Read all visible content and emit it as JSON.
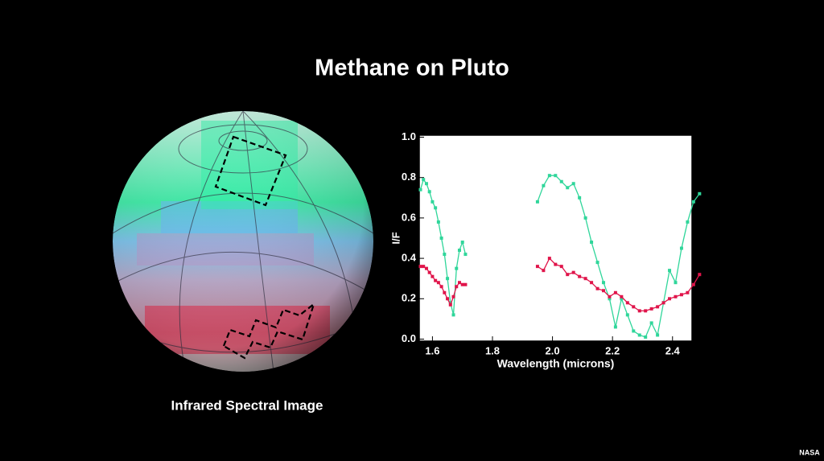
{
  "slide": {
    "title": "Methane on Pluto",
    "caption": "Infrared Spectral Image",
    "credit": "NASA"
  },
  "chart_data": {
    "type": "line",
    "x_label": "Wavelength (microns)",
    "y_label": "I/F",
    "x": [
      1.56,
      1.57,
      1.58,
      1.59,
      1.6,
      1.61,
      1.62,
      1.63,
      1.64,
      1.65,
      1.66,
      1.67,
      1.68,
      1.69,
      1.7,
      1.71,
      1.8,
      1.95,
      1.97,
      1.99,
      2.01,
      2.03,
      2.05,
      2.07,
      2.09,
      2.11,
      2.13,
      2.15,
      2.17,
      2.19,
      2.21,
      2.23,
      2.25,
      2.27,
      2.29,
      2.31,
      2.33,
      2.35,
      2.37,
      2.39,
      2.41,
      2.43,
      2.45,
      2.47,
      2.49
    ],
    "series": [
      {
        "color": "#2fd69a",
        "values": [
          0.74,
          0.79,
          0.77,
          0.73,
          0.68,
          0.65,
          0.58,
          0.5,
          0.42,
          0.3,
          0.18,
          0.12,
          0.35,
          0.44,
          0.48,
          0.42,
          null,
          0.68,
          0.76,
          0.81,
          0.81,
          0.78,
          0.75,
          0.77,
          0.7,
          0.6,
          0.48,
          0.38,
          0.28,
          0.2,
          0.06,
          0.2,
          0.12,
          0.04,
          0.02,
          0.01,
          0.08,
          0.02,
          0.18,
          0.34,
          0.28,
          0.45,
          0.58,
          0.68,
          0.72
        ]
      },
      {
        "color": "#e0144a",
        "values": [
          0.36,
          0.36,
          0.35,
          0.33,
          0.31,
          0.29,
          0.28,
          0.26,
          0.23,
          0.2,
          0.17,
          0.21,
          0.26,
          0.28,
          0.27,
          0.27,
          null,
          0.36,
          0.34,
          0.4,
          0.37,
          0.36,
          0.32,
          0.33,
          0.31,
          0.3,
          0.28,
          0.25,
          0.24,
          0.21,
          0.23,
          0.21,
          0.18,
          0.16,
          0.14,
          0.14,
          0.15,
          0.16,
          0.18,
          0.2,
          0.21,
          0.22,
          0.23,
          0.27,
          0.32
        ]
      }
    ],
    "xlim": [
      1.556,
      2.465
    ],
    "ylim": [
      -0.01,
      1.01
    ],
    "xticks": [
      1.6,
      1.8,
      {
        "value": 2,
        "label": "2.0"
      },
      2.2,
      2.4
    ],
    "yticks": [
      {
        "value": 0,
        "label": "0.0"
      },
      0.2,
      0.4,
      0.6,
      0.8,
      {
        "value": 1,
        "label": "1.0"
      }
    ]
  }
}
